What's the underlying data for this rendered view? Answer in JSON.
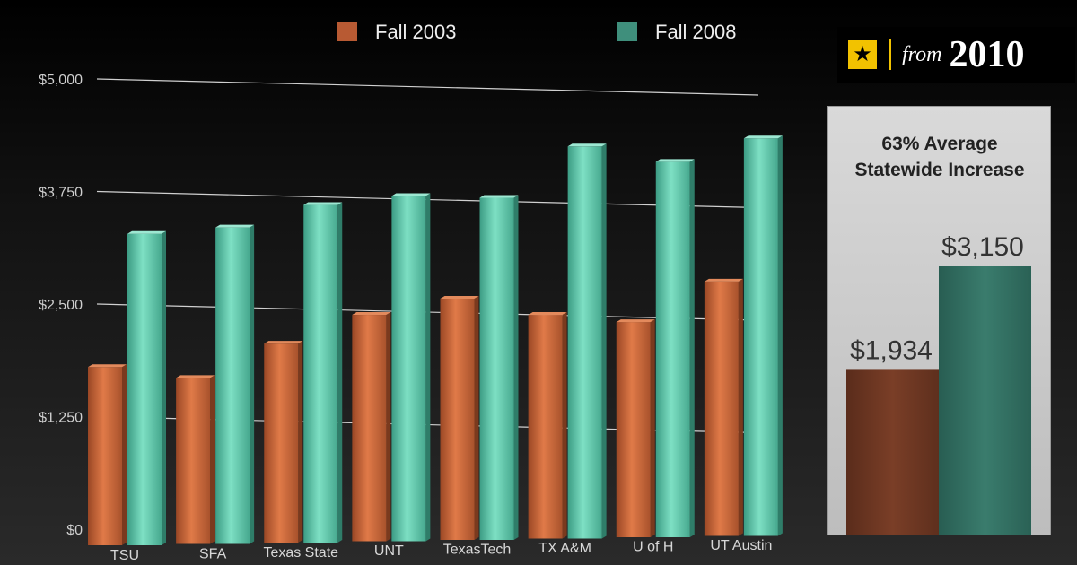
{
  "chart_data": [
    {
      "type": "bar",
      "title": "",
      "xlabel": "",
      "ylabel": "",
      "ylim": [
        0,
        5000
      ],
      "yticks": [
        "$0",
        "$1,250",
        "$2,500",
        "$3,750",
        "$5,000"
      ],
      "ytick_values": [
        0,
        1250,
        2500,
        3750,
        5000
      ],
      "grid": true,
      "legend": "top-center",
      "categories": [
        "TSU",
        "SFA",
        "Texas State",
        "UNT",
        "TexasTech",
        "TX A&M",
        "U of H",
        "UT Austin"
      ],
      "series": [
        {
          "name": "Fall 2003",
          "color": "#c8643a",
          "values": [
            1800,
            1680,
            2060,
            2380,
            2560,
            2380,
            2300,
            2750
          ]
        },
        {
          "name": "Fall 2008",
          "color": "#5fc4a8",
          "values": [
            3280,
            3350,
            3600,
            3700,
            3680,
            4250,
            4080,
            4340
          ]
        }
      ]
    },
    {
      "type": "bar",
      "title": "63% Average Statewide Increase",
      "title_lines": [
        "63% Average",
        "Statewide Increase"
      ],
      "categories": [
        "Fall 2003",
        "Fall 2008"
      ],
      "values": [
        1934,
        3150
      ],
      "labels": [
        "$1,934",
        "$3,150"
      ],
      "colors": [
        "#6b3622",
        "#2f6b5e"
      ],
      "ylim": [
        0,
        3400
      ]
    }
  ],
  "badge": {
    "icon": "star-icon",
    "from": "from",
    "year": "2010"
  }
}
